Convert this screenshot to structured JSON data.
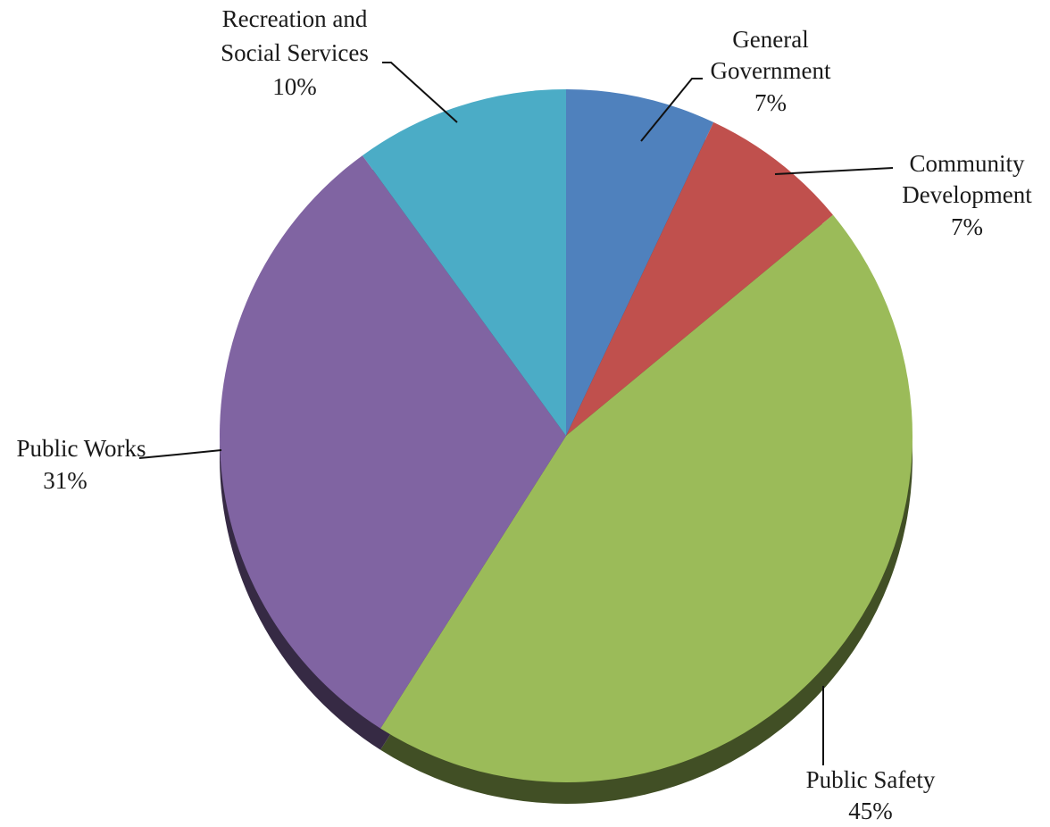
{
  "chart_data": {
    "type": "pie",
    "title": "",
    "start": "top",
    "direction": "clockwise",
    "three_d_shadow": true,
    "slices": [
      {
        "label_lines": [
          "General",
          "Government"
        ],
        "pct_text": "7%",
        "value": 7,
        "color": "#4f81bd"
      },
      {
        "label_lines": [
          "Community",
          "Development"
        ],
        "pct_text": "7%",
        "value": 7,
        "color": "#c0504d"
      },
      {
        "label_lines": [
          "Public Safety"
        ],
        "pct_text": "45%",
        "value": 45,
        "color": "#9bbb59"
      },
      {
        "label_lines": [
          "Public Works"
        ],
        "pct_text": "31%",
        "value": 31,
        "color": "#8064a2"
      },
      {
        "label_lines": [
          "Recreation and",
          "Social Services"
        ],
        "pct_text": "10%",
        "value": 10,
        "color": "#4bacc6"
      }
    ]
  }
}
